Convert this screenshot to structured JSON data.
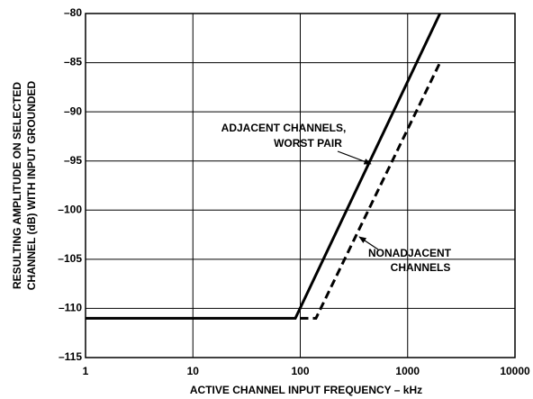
{
  "chart_data": {
    "type": "line",
    "xlabel": "ACTIVE CHANNEL INPUT FREQUENCY – kHz",
    "ylabel": [
      "RESULTING AMPLITUDE ON SELECTED",
      "CHANNEL (dB) WITH INPUT GROUNDED"
    ],
    "xscale": "log",
    "grid": true,
    "xlim": [
      1,
      10000
    ],
    "xticks": [
      1,
      10,
      100,
      1000,
      10000
    ],
    "ylim": [
      -115,
      -80
    ],
    "yticks": [
      {
        "value": -115,
        "label": "–115"
      },
      {
        "value": -110,
        "label": "–110"
      },
      {
        "value": -105,
        "label": "–105"
      },
      {
        "value": -100,
        "label": "–100"
      },
      {
        "value": -95,
        "label": "–95"
      },
      {
        "value": -90,
        "label": "–90"
      },
      {
        "value": -85,
        "label": "–85"
      },
      {
        "value": -80,
        "label": "–80"
      }
    ],
    "series": [
      {
        "color": "#000000",
        "dashed": false,
        "x": [
          1,
          90,
          2000
        ],
        "values": [
          -111,
          -111,
          -80
        ]
      },
      {
        "color": "#000000",
        "dashed": true,
        "x": [
          100,
          140,
          2000
        ],
        "values": [
          -111,
          -111,
          -85
        ]
      }
    ],
    "annotations": [
      {
        "lines": [
          "ADJACENT CHANNELS,",
          "WORST PAIR"
        ]
      },
      {
        "lines": [
          "NONADJACENT",
          "CHANNELS"
        ]
      }
    ]
  }
}
